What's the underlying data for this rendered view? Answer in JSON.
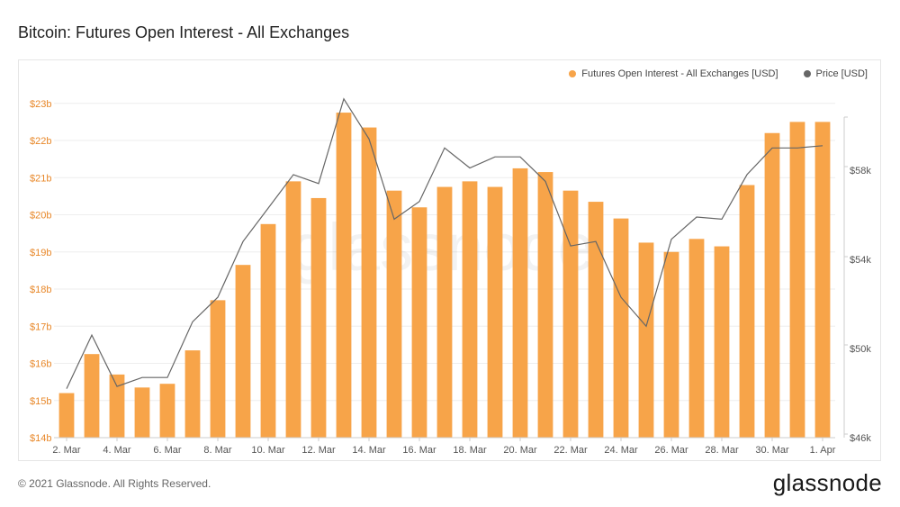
{
  "header": {
    "title": "Bitcoin: Futures Open Interest - All Exchanges"
  },
  "footer": {
    "copyright": "© 2021 Glassnode. All Rights Reserved.",
    "logo": "glassnode"
  },
  "watermark": "glassnode",
  "colors": {
    "bar": "#F7A449",
    "price_line": "#666666",
    "left_axis_text": "#E8882A",
    "grid": "#eeeeee"
  },
  "chart_data": {
    "type": "bar",
    "title": "Bitcoin: Futures Open Interest - All Exchanges",
    "x": [
      "2021-03-02",
      "2021-03-03",
      "2021-03-04",
      "2021-03-05",
      "2021-03-06",
      "2021-03-07",
      "2021-03-08",
      "2021-03-09",
      "2021-03-10",
      "2021-03-11",
      "2021-03-12",
      "2021-03-13",
      "2021-03-14",
      "2021-03-15",
      "2021-03-16",
      "2021-03-17",
      "2021-03-18",
      "2021-03-19",
      "2021-03-20",
      "2021-03-21",
      "2021-03-22",
      "2021-03-23",
      "2021-03-24",
      "2021-03-25",
      "2021-03-26",
      "2021-03-27",
      "2021-03-28",
      "2021-03-29",
      "2021-03-30",
      "2021-03-31",
      "2021-04-01"
    ],
    "x_tick_labels": [
      "2. Mar",
      "4. Mar",
      "6. Mar",
      "8. Mar",
      "10. Mar",
      "12. Mar",
      "14. Mar",
      "16. Mar",
      "18. Mar",
      "20. Mar",
      "22. Mar",
      "24. Mar",
      "26. Mar",
      "28. Mar",
      "30. Mar",
      "1. Apr"
    ],
    "series": [
      {
        "name": "Futures Open Interest - All Exchanges [USD]",
        "type": "bar",
        "axis": "left",
        "values": [
          15200000000.0,
          16250000000.0,
          15700000000.0,
          15350000000.0,
          15450000000.0,
          16350000000.0,
          17700000000.0,
          18650000000.0,
          19750000000.0,
          20900000000.0,
          20450000000.0,
          22750000000.0,
          22350000000.0,
          20650000000.0,
          20200000000.0,
          20750000000.0,
          20900000000.0,
          20750000000.0,
          21250000000.0,
          21150000000.0,
          20650000000.0,
          20350000000.0,
          19900000000.0,
          19250000000.0,
          19000000000.0,
          19350000000.0,
          19150000000.0,
          20800000000.0,
          22200000000.0,
          22500000000.0,
          22500000000.0
        ]
      },
      {
        "name": "Price [USD]",
        "type": "line",
        "axis": "right",
        "values": [
          48200,
          50600,
          48300,
          48700,
          48700,
          51200,
          52300,
          54800,
          56300,
          57800,
          57400,
          61200,
          59400,
          55800,
          56600,
          59000,
          58100,
          58600,
          58600,
          57500,
          54600,
          54800,
          52300,
          51000,
          54900,
          55900,
          55800,
          57800,
          59000,
          59000,
          59100
        ]
      }
    ],
    "left_axis": {
      "ticks": [
        "$14b",
        "$15b",
        "$16b",
        "$17b",
        "$18b",
        "$19b",
        "$20b",
        "$21b",
        "$22b",
        "$23b"
      ],
      "range": [
        14000000000.0,
        23600000000.0
      ]
    },
    "right_axis": {
      "ticks": [
        "$46k",
        "$50k",
        "$54k",
        "$58k"
      ],
      "range": [
        46000,
        62000
      ]
    },
    "legend_position": "top-right",
    "grid": true
  }
}
